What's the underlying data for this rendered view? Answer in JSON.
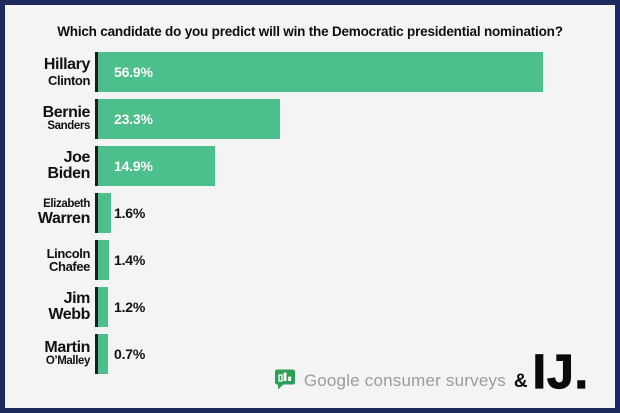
{
  "title": "Which candidate do you predict will win the Democratic presidential nomination?",
  "chart_data": {
    "type": "bar",
    "orientation": "horizontal",
    "title": "Which candidate do you predict will win the Democratic presidential nomination?",
    "unit": "percent",
    "xlim": [
      0,
      60
    ],
    "grid": false,
    "legend": "none",
    "bar_color": "#4dbf8c",
    "categories": [
      "Hillary Clinton",
      "Bernie Sanders",
      "Joe Biden",
      "Elizabeth Warren",
      "Lincoln Chafee",
      "Jim Webb",
      "Martin O’Malley"
    ],
    "values": [
      56.9,
      23.3,
      14.9,
      1.6,
      1.4,
      1.2,
      0.7
    ],
    "rows": [
      {
        "line1": "Hillary",
        "line2": "Clinton",
        "value": 56.9,
        "label": "56.9%"
      },
      {
        "line1": "Bernie",
        "line2": "Sanders",
        "value": 23.3,
        "label": "23.3%"
      },
      {
        "line1": "Joe",
        "line2": "Biden",
        "value": 14.9,
        "label": "14.9%"
      },
      {
        "line1": "Elizabeth",
        "line2": "Warren",
        "value": 1.6,
        "label": "1.6%"
      },
      {
        "line1": "Lincoln",
        "line2": "Chafee",
        "value": 1.4,
        "label": "1.4%"
      },
      {
        "line1": "Jim",
        "line2": "Webb",
        "value": 1.2,
        "label": "1.2%"
      },
      {
        "line1": "Martin",
        "line2": "O’Malley",
        "value": 0.7,
        "label": "0.7%"
      }
    ]
  },
  "footer": {
    "source_label": "Google consumer surveys",
    "ampersand": "&",
    "brand": "IJ.",
    "icon": "survey-bubble-chart-icon"
  },
  "colors": {
    "bar_green": "#4dbf8c",
    "border_navy": "#1c2a5e",
    "background": "#f4f4f4",
    "icon_green": "#2f9e56",
    "axis": "#1c1c1c",
    "muted_text": "#9b9b9b"
  }
}
